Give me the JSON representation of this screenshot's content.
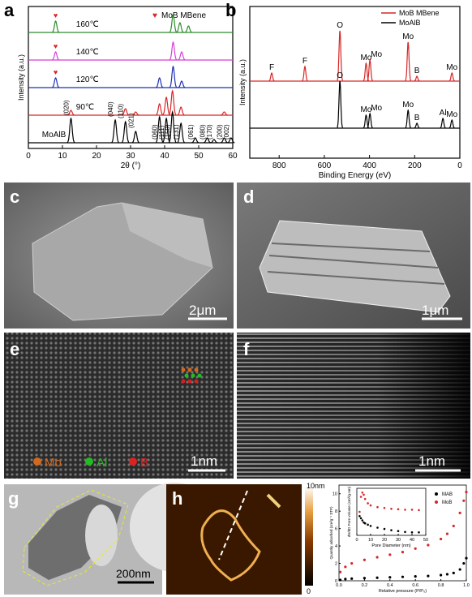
{
  "chart_data": [
    {
      "type": "xrd",
      "panel": "a",
      "xlabel": "2θ (°)",
      "ylabel": "Intensity (a.u.)",
      "xlim": [
        0,
        60
      ],
      "xticks": [
        0,
        10,
        20,
        30,
        40,
        50,
        60
      ],
      "legend": {
        "symbol": "♥",
        "label": "MoB MBene",
        "color": "#d62728"
      },
      "series": [
        {
          "name": "160℃",
          "color": "#2e8b2e",
          "peaks": [
            8,
            42.5,
            44.5,
            47
          ],
          "values": [
            14,
            22,
            12,
            8
          ],
          "mbene_x": [
            8
          ]
        },
        {
          "name": "140℃",
          "color": "#d63fd6",
          "peaks": [
            8,
            42.5,
            45
          ],
          "values": [
            10,
            22,
            10
          ],
          "mbene_x": [
            8
          ]
        },
        {
          "name": "120℃",
          "color": "#1f2fb5",
          "peaks": [
            8,
            38.5,
            42.5,
            45
          ],
          "values": [
            12,
            12,
            26,
            8
          ],
          "mbene_x": [
            8
          ]
        },
        {
          "name": "90℃",
          "color": "#d62728",
          "peaks": [
            12.5,
            28.5,
            31.5,
            38.5,
            40.5,
            42.3,
            44.8,
            57.5
          ],
          "values": [
            6,
            8,
            4,
            14,
            22,
            30,
            10,
            4
          ]
        },
        {
          "name": "MoAlB",
          "color": "#000000",
          "peaks": [
            12.5,
            25.5,
            28.5,
            31.5,
            38.5,
            40.5,
            42.3,
            44.8,
            49,
            52.5,
            54.5,
            57.5,
            59.5
          ],
          "values": [
            30,
            28,
            26,
            14,
            32,
            30,
            38,
            24,
            6,
            6,
            4,
            6,
            6
          ],
          "hkl": [
            "(020)",
            "(040)",
            "(110)",
            "(021)",
            "(060)",
            "(111)",
            "(150)",
            "(131)",
            "(061)",
            "(080)",
            "(170)",
            "(200)",
            "(002)"
          ]
        }
      ]
    },
    {
      "type": "xps",
      "panel": "b",
      "xlabel": "Binding Energy (eV)",
      "ylabel": "Intensity (a.u.)",
      "xlim": [
        930,
        0
      ],
      "xticks": [
        800,
        600,
        400,
        200,
        0
      ],
      "series": [
        {
          "name": "MoB MBene",
          "color": "#d62728",
          "peaks": [
            833,
            686,
            531,
            415,
            398,
            229,
            190,
            35
          ],
          "values": [
            10,
            18,
            62,
            22,
            26,
            48,
            6,
            10
          ],
          "peak_labels": [
            "F",
            "F",
            "O",
            "Mo",
            "Mo",
            "Mo",
            "B",
            "Mo"
          ]
        },
        {
          "name": "MoAlB",
          "color": "#000000",
          "peaks": [
            531,
            415,
            398,
            229,
            190,
            75,
            35
          ],
          "values": [
            58,
            16,
            18,
            22,
            6,
            12,
            10
          ],
          "peak_labels": [
            "O",
            "Mo",
            "Mo",
            "Mo",
            "B",
            "Al",
            "Mo"
          ]
        }
      ]
    },
    {
      "type": "isotherm",
      "xlabel": "Relative pressure (P/P₀)",
      "ylabel": "Quantity adsorbed (cm³g⁻¹ STP)",
      "xlim": [
        0,
        1
      ],
      "xticks": [
        {
          "value": 0,
          "label": "0.0"
        },
        {
          "value": 0.2,
          "label": "0.2"
        },
        {
          "value": 0.4,
          "label": "0.4"
        },
        {
          "value": 0.6,
          "label": "0.6"
        },
        {
          "value": 0.8,
          "label": "0.8"
        },
        {
          "value": 1,
          "label": "1.0"
        }
      ],
      "ylim": [
        0,
        11
      ],
      "yticks": [
        0,
        2,
        4,
        6,
        8,
        10
      ],
      "series": [
        {
          "name": "MAB",
          "color": "#000000",
          "x": [
            0.01,
            0.05,
            0.1,
            0.2,
            0.3,
            0.4,
            0.5,
            0.6,
            0.7,
            0.8,
            0.85,
            0.9,
            0.95,
            0.98,
            1
          ],
          "values": [
            0.1,
            0.2,
            0.25,
            0.3,
            0.35,
            0.4,
            0.45,
            0.5,
            0.55,
            0.65,
            0.75,
            0.9,
            1.3,
            2,
            2.6
          ]
        },
        {
          "name": "MoB",
          "color": "#d62728",
          "x": [
            0.01,
            0.05,
            0.1,
            0.2,
            0.3,
            0.4,
            0.5,
            0.6,
            0.7,
            0.8,
            0.85,
            0.9,
            0.95,
            0.98,
            1
          ],
          "values": [
            1,
            1.6,
            2,
            2.4,
            2.7,
            3,
            3.3,
            3.7,
            4.1,
            4.8,
            5.4,
            6.3,
            7.8,
            9.2,
            10.2
          ]
        }
      ],
      "inset": {
        "xlabel": "Pore Diameter (nm)",
        "ylabel": "dV/dD Pore volume (cm³/g·nm)",
        "xlim": [
          0,
          50
        ],
        "xticks": [
          0,
          10,
          20,
          30,
          40,
          50
        ],
        "ylim": [
          0,
          1.1
        ],
        "series": [
          {
            "name": "MoB",
            "color": "#d62728",
            "x": [
              2,
              3,
              4,
              5,
              6,
              8,
              10,
              15,
              20,
              25,
              30,
              35,
              40,
              45
            ],
            "values": [
              0.55,
              0.9,
              1,
              0.95,
              0.85,
              0.75,
              0.7,
              0.66,
              0.64,
              0.62,
              0.61,
              0.6,
              0.6,
              0.59
            ]
          },
          {
            "name": "MAB",
            "color": "#000000",
            "x": [
              2,
              3,
              4,
              5,
              6,
              8,
              10,
              15,
              20,
              25,
              30,
              35,
              40,
              45
            ],
            "values": [
              0.45,
              0.4,
              0.35,
              0.3,
              0.28,
              0.25,
              0.22,
              0.18,
              0.15,
              0.12,
              0.1,
              0.08,
              0.07,
              0.07
            ]
          }
        ]
      }
    }
  ],
  "images": [
    {
      "label": "c",
      "scale_bar": "2μm"
    },
    {
      "label": "d",
      "scale_bar": "1μm"
    },
    {
      "label": "e",
      "scale_bar": "1nm",
      "legend": [
        "Mo",
        "Al",
        "B"
      ]
    },
    {
      "label": "f",
      "scale_bar": "1nm"
    },
    {
      "label": "g",
      "scale_bar": "200nm"
    },
    {
      "label": "h",
      "colorbar": [
        "10nm",
        "0"
      ]
    }
  ]
}
